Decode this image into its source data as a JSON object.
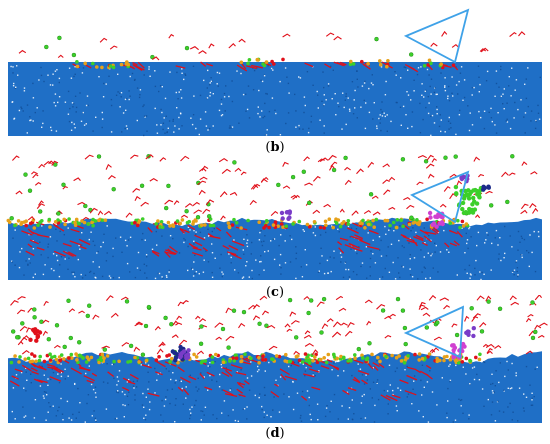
{
  "panels": [
    {
      "id": "b",
      "label": "b",
      "open": "(",
      "close": ")"
    },
    {
      "id": "c",
      "label": "c",
      "open": "(",
      "close": ")"
    },
    {
      "id": "d",
      "label": "d",
      "open": "(",
      "close": ")"
    }
  ],
  "colors": {
    "substrate": "#1f6fc6",
    "substrate_dark": "#124f98",
    "substrate_speck": "#ffffff",
    "tool_outline": "#3fa2e8",
    "chip_red": "#e0101a",
    "atom_green": "#3ccf2a",
    "atom_orange": "#e6a11a",
    "atom_magenta": "#d040d0",
    "atom_purple": "#7a3cc8",
    "atom_navy": "#1c2a8a"
  }
}
